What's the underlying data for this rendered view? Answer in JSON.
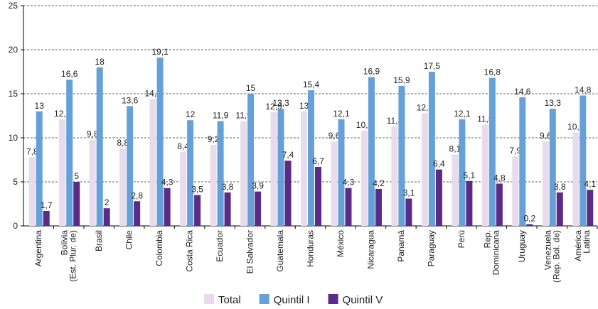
{
  "chart_data": {
    "type": "bar",
    "categories": [
      "Argentina",
      "Bolivia\n(Est. Plur. de)",
      "Brasil",
      "Chile",
      "Colombia",
      "Costa Rica",
      "Ecuador",
      "El Salvador",
      "Guatemala",
      "Honduras",
      "México",
      "Nicaragua",
      "Panamá",
      "Paraguay",
      "Perú",
      "Rep.\nDominicana",
      "Uruguay",
      "Venezuela\n(Rep. Bol. de)",
      "América\nLatina"
    ],
    "series": [
      {
        "name": "Total",
        "color": "#e8dcec",
        "values": [
          7.8,
          12.1,
          9.8,
          8.8,
          14.4,
          8.4,
          9.2,
          11.9,
          12.9,
          13,
          9.6,
          10.8,
          11.3,
          12.8,
          8.1,
          11.5,
          7.9,
          9.6,
          10.6
        ],
        "value_labels": [
          "7,8",
          "12,1",
          "9,8",
          "8,8",
          "14,4",
          "8,4",
          "9,2",
          "11,9",
          "12,9",
          "13",
          "9,6",
          "10,8",
          "11,3",
          "12,8",
          "8,1",
          "11,5",
          "7,9",
          "9,6",
          "10,6"
        ]
      },
      {
        "name": "Quintil I",
        "color": "#65a1d8",
        "values": [
          13,
          16.6,
          18,
          13.6,
          19.1,
          12,
          11.9,
          15,
          13.3,
          15.4,
          12.1,
          16.9,
          15.9,
          17.5,
          12.1,
          16.8,
          14.6,
          13.3,
          14.8
        ],
        "value_labels": [
          "13",
          "16,6",
          "18",
          "13,6",
          "19,1",
          "12",
          "11,9",
          "15",
          "13,3",
          "15,4",
          "12,1",
          "16,9",
          "15,9",
          "17,5",
          "12,1",
          "16,8",
          "14,6",
          "13,3",
          "14,8"
        ]
      },
      {
        "name": "Quintil V",
        "color": "#5c2a87",
        "values": [
          1.7,
          5,
          2,
          2.8,
          4.3,
          3.5,
          3.8,
          3.9,
          7.4,
          6.7,
          4.3,
          4.2,
          3.1,
          6.4,
          5.1,
          4.8,
          0.2,
          3.8,
          4.1
        ],
        "value_labels": [
          "1,7",
          "5",
          "2",
          "2,8",
          "4,3",
          "3,5",
          "3,8",
          "3,9",
          "7,4",
          "6,7",
          "4,3",
          "4,2",
          "3,1",
          "6,4",
          "5,1",
          "4,8",
          "0,2",
          "3,8",
          "4,1"
        ]
      }
    ],
    "ylim": [
      0,
      25
    ],
    "yticks": [
      0,
      5,
      10,
      15,
      20,
      25
    ],
    "grid": true,
    "legend": "bottom"
  }
}
